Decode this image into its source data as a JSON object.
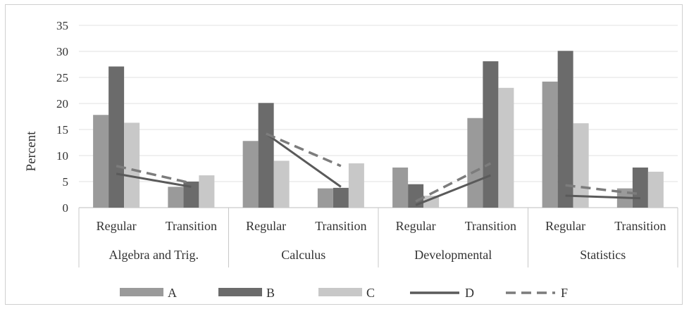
{
  "chart_data": {
    "type": "bar",
    "ylabel": "Percent",
    "ylim": [
      0,
      35
    ],
    "yticks": [
      0,
      5,
      10,
      15,
      20,
      25,
      30,
      35
    ],
    "grid": true,
    "legend_position": "bottom",
    "groups": [
      "Algebra and Trig.",
      "Calculus",
      "Developmental",
      "Statistics"
    ],
    "categories": [
      "Regular",
      "Transition",
      "Regular",
      "Transition",
      "Regular",
      "Transition",
      "Regular",
      "Transition"
    ],
    "series": [
      {
        "name": "A",
        "kind": "bar",
        "color": "#9a9a9a",
        "values": [
          17.8,
          4.0,
          12.8,
          3.7,
          7.7,
          17.2,
          24.2,
          3.7
        ]
      },
      {
        "name": "B",
        "kind": "bar",
        "color": "#6b6b6b",
        "values": [
          27.1,
          5.0,
          20.1,
          3.8,
          4.5,
          28.1,
          30.1,
          7.7
        ]
      },
      {
        "name": "C",
        "kind": "bar",
        "color": "#c8c8c8",
        "values": [
          16.3,
          6.2,
          9.0,
          8.5,
          2.3,
          23.0,
          16.2,
          6.9
        ]
      },
      {
        "name": "D",
        "kind": "line",
        "color": "#5a5a5a",
        "dash": "solid",
        "values": [
          6.5,
          4.0,
          14.2,
          4.0,
          0.5,
          6.2,
          2.3,
          1.8
        ]
      },
      {
        "name": "F",
        "kind": "line",
        "color": "#7c7c7c",
        "dash": "dashed",
        "values": [
          8.0,
          4.7,
          14.2,
          8.0,
          1.2,
          8.5,
          4.3,
          2.6
        ]
      }
    ]
  }
}
